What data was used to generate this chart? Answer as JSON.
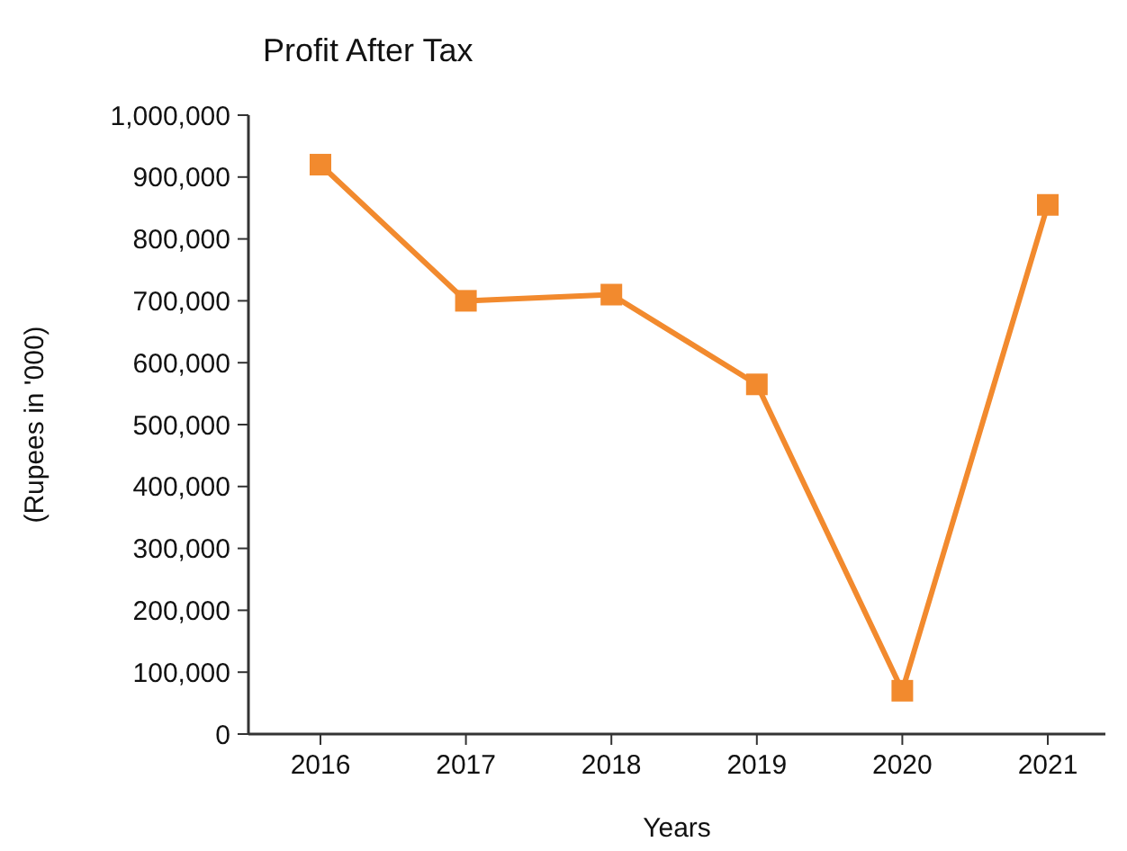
{
  "chart_data": {
    "type": "line",
    "title": "Profit After Tax",
    "xlabel": "Years",
    "ylabel": "(Rupees  in '000)",
    "categories": [
      "2016",
      "2017",
      "2018",
      "2019",
      "2020",
      "2021"
    ],
    "series": [
      {
        "color": "#f28a2e",
        "values": [
          920000,
          700000,
          710000,
          565000,
          70000,
          855000
        ]
      }
    ],
    "ylim": [
      0,
      1000000
    ],
    "yticks": [
      {
        "value": 0,
        "label": "0"
      },
      {
        "value": 100000,
        "label": "100,000"
      },
      {
        "value": 200000,
        "label": "200,000"
      },
      {
        "value": 300000,
        "label": "300,000"
      },
      {
        "value": 400000,
        "label": "400,000"
      },
      {
        "value": 500000,
        "label": "500,000"
      },
      {
        "value": 600000,
        "label": "600,000"
      },
      {
        "value": 700000,
        "label": "700,000"
      },
      {
        "value": 800000,
        "label": "800,000"
      },
      {
        "value": 900000,
        "label": "900,000"
      },
      {
        "value": 1000000,
        "label": "1,000,000"
      }
    ],
    "grid": false,
    "marker": "square",
    "line_style": "solid"
  }
}
